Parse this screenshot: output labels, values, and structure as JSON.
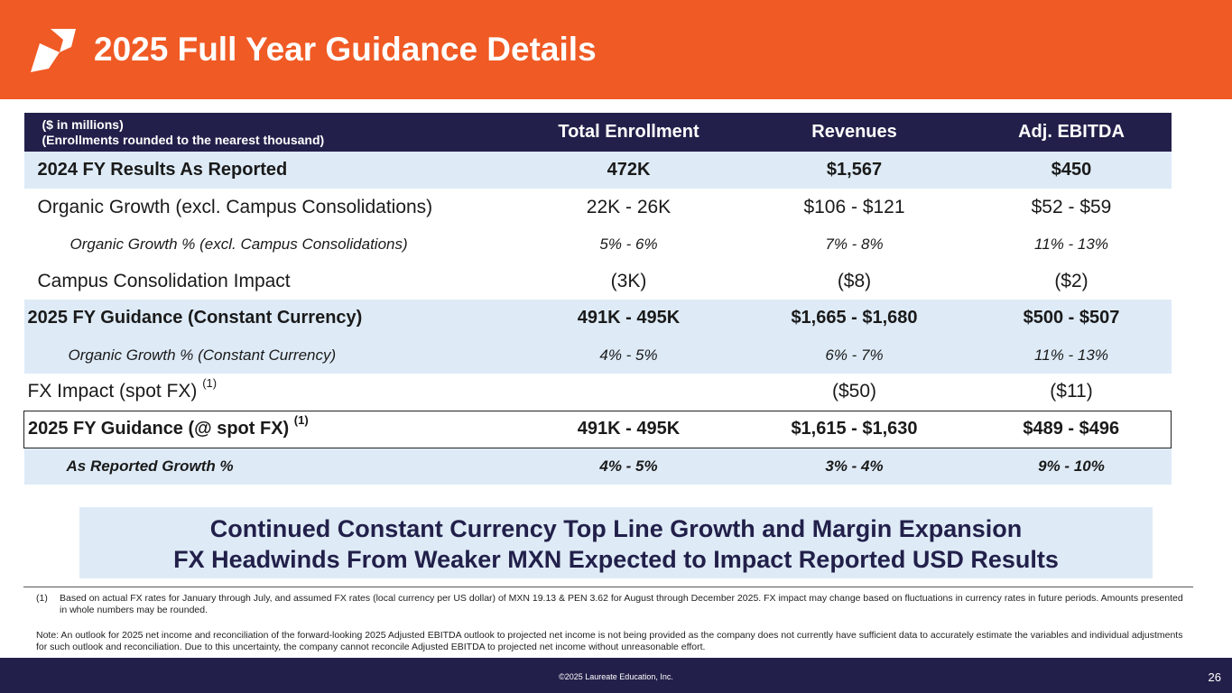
{
  "header": {
    "title": "2025 Full Year Guidance Details",
    "logo_icon": "laureate-leaf-icon",
    "bg_color": "#f05a24"
  },
  "table": {
    "note_line1": "($ in millions)",
    "note_line2": "(Enrollments rounded to the nearest thousand)",
    "columns": [
      "Total Enrollment",
      "Revenues",
      "Adj. EBITDA"
    ],
    "rows": [
      {
        "label": "2024 FY Results As Reported",
        "values": [
          "472K",
          "$1,567",
          "$450"
        ]
      },
      {
        "label": "Organic Growth (excl. Campus Consolidations)",
        "values": [
          "22K - 26K",
          "$106 - $121",
          "$52 - $59"
        ]
      },
      {
        "label": "Organic Growth % (excl. Campus Consolidations)",
        "values": [
          "5% - 6%",
          "7% - 8%",
          "11% - 13%"
        ]
      },
      {
        "label": "Campus Consolidation Impact",
        "values": [
          "(3K)",
          "($8)",
          "($2)"
        ]
      },
      {
        "label": "2025 FY Guidance (Constant Currency)",
        "values": [
          "491K - 495K",
          "$1,665 - $1,680",
          "$500 - $507"
        ]
      },
      {
        "label": "Organic Growth % (Constant Currency)",
        "values": [
          "4% - 5%",
          "6% - 7%",
          "11% - 13%"
        ]
      },
      {
        "label": "FX Impact (spot FX)",
        "sup": "(1)",
        "values": [
          "",
          "($50)",
          "($11)"
        ]
      },
      {
        "label": "2025 FY Guidance (@ spot FX)",
        "sup": "(1)",
        "values": [
          "491K - 495K",
          "$1,615 - $1,630",
          "$489 - $496"
        ]
      },
      {
        "label": "As Reported Growth %",
        "values": [
          "4% - 5%",
          "3% - 4%",
          "9% - 10%"
        ]
      }
    ]
  },
  "callout": {
    "line1": "Continued Constant Currency Top Line Growth and Margin Expansion",
    "line2": "FX Headwinds From Weaker MXN Expected to Impact Reported USD Results"
  },
  "footnotes": {
    "fn1_num": "(1)",
    "fn1_text": "Based on actual FX rates for January through July, and assumed FX rates (local currency per US dollar) of MXN 19.13 & PEN 3.62 for August through December 2025. FX impact may change based on fluctuations in currency rates in future periods. Amounts presented in whole numbers may be rounded.",
    "note": "Note: An outlook for 2025 net income and reconciliation of the forward-looking 2025 Adjusted EBITDA outlook to projected net income is not being provided as the company does not currently have sufficient data to accurately estimate the variables and individual adjustments for such outlook and reconciliation.  Due to this uncertainty, the company cannot reconcile Adjusted EBITDA to projected net income without unreasonable effort."
  },
  "footer": {
    "copyright": "©2025 Laureate Education, Inc.",
    "page_number": "26"
  }
}
